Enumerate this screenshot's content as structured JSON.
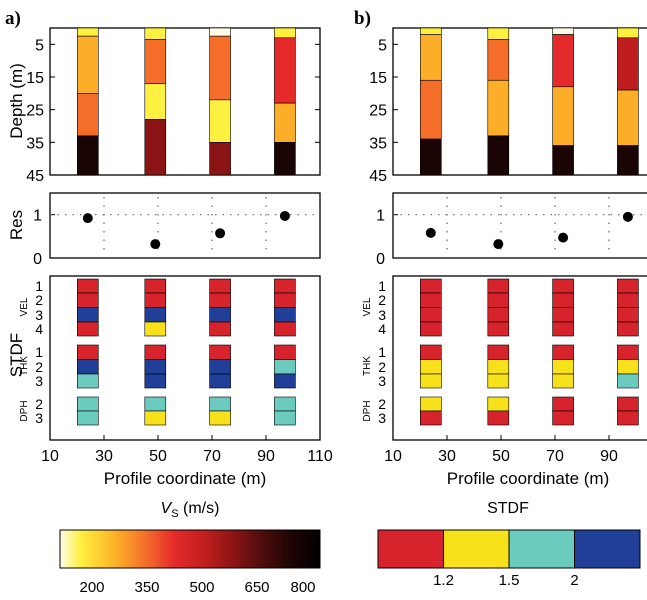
{
  "colors": {
    "vs_ramp": [
      "#fffde8",
      "#fef040",
      "#fcae28",
      "#f46e2a",
      "#e42a2a",
      "#c01e1e",
      "#8a1414",
      "#4c0c0c",
      "#1a0404",
      "#000000"
    ],
    "stdf": {
      "red": "#d7232b",
      "yellow": "#f7e11a",
      "teal": "#6ccbbf",
      "blue": "#1f3f99"
    },
    "dot": "#000000",
    "dotted_grid": "#666666"
  },
  "figure": {
    "panel_a_label": "a)",
    "panel_b_label": "b)",
    "depth_label": "Depth (m)",
    "res_label": "Res",
    "stdf_label": "STDF",
    "xlabel": "Profile coordinate (m)",
    "depth_ticks": [
      "5",
      "15",
      "25",
      "35",
      "45"
    ],
    "res_ticks": [
      "1",
      "0"
    ],
    "x_ticks": [
      "10",
      "30",
      "50",
      "70",
      "90",
      "110"
    ],
    "stdf_groups": [
      {
        "name": "VEL",
        "rows": [
          "1",
          "2",
          "3",
          "4"
        ]
      },
      {
        "name": "THK",
        "rows": [
          "1",
          "2",
          "3"
        ]
      },
      {
        "name": "DPH",
        "rows": [
          "2",
          "3"
        ]
      }
    ],
    "vs_legend": {
      "title_italic": "V",
      "title_sub": "S",
      "title_rest": " (m/s)",
      "ticks": [
        "200",
        "350",
        "500",
        "650",
        "800"
      ]
    },
    "stdf_legend": {
      "title": "STDF",
      "ticks": [
        "1.2",
        "1.5",
        "2"
      ]
    }
  },
  "chart_data": [
    {
      "type": "heatmap",
      "panel": "a)",
      "x": [
        24,
        49,
        73,
        97
      ],
      "xlim": [
        10,
        110
      ],
      "depth_ylim": [
        0,
        45
      ],
      "vs_columns": [
        {
          "x": 24,
          "layers": [
            {
              "top": 0,
              "bottom": 2.5,
              "vs": 200
            },
            {
              "top": 2.5,
              "bottom": 20,
              "vs": 330
            },
            {
              "top": 20,
              "bottom": 33,
              "vs": 420
            },
            {
              "top": 33,
              "bottom": 45,
              "vs": 800
            }
          ]
        },
        {
          "x": 49,
          "layers": [
            {
              "top": 0,
              "bottom": 3.5,
              "vs": 200
            },
            {
              "top": 3.5,
              "bottom": 17,
              "vs": 400
            },
            {
              "top": 17,
              "bottom": 28,
              "vs": 250
            },
            {
              "top": 28,
              "bottom": 45,
              "vs": 650
            }
          ]
        },
        {
          "x": 73,
          "layers": [
            {
              "top": 0,
              "bottom": 2.5,
              "vs": 180
            },
            {
              "top": 2.5,
              "bottom": 22,
              "vs": 420
            },
            {
              "top": 22,
              "bottom": 35,
              "vs": 260
            },
            {
              "top": 35,
              "bottom": 45,
              "vs": 620
            }
          ]
        },
        {
          "x": 97,
          "layers": [
            {
              "top": 0,
              "bottom": 3,
              "vs": 220
            },
            {
              "top": 3,
              "bottom": 23,
              "vs": 470
            },
            {
              "top": 23,
              "bottom": 35,
              "vs": 270
            },
            {
              "top": 35,
              "bottom": 45,
              "vs": 800
            }
          ]
        }
      ],
      "res": [
        {
          "x": 24,
          "y": 0.92
        },
        {
          "x": 49,
          "y": 0.32
        },
        {
          "x": 73,
          "y": 0.57
        },
        {
          "x": 97,
          "y": 0.97
        }
      ],
      "res_ylim": [
        0,
        1.5
      ],
      "stdf": [
        {
          "x": 24,
          "VEL": [
            "red",
            "red",
            "blue",
            "red"
          ],
          "THK": [
            "red",
            "blue",
            "teal"
          ],
          "DPH": [
            "teal",
            "teal"
          ]
        },
        {
          "x": 49,
          "VEL": [
            "red",
            "red",
            "blue",
            "yellow"
          ],
          "THK": [
            "red",
            "blue",
            "blue"
          ],
          "DPH": [
            "teal",
            "yellow"
          ]
        },
        {
          "x": 73,
          "VEL": [
            "red",
            "red",
            "blue",
            "red"
          ],
          "THK": [
            "red",
            "blue",
            "blue"
          ],
          "DPH": [
            "teal",
            "yellow"
          ]
        },
        {
          "x": 97,
          "VEL": [
            "red",
            "red",
            "blue",
            "red"
          ],
          "THK": [
            "red",
            "teal",
            "blue"
          ],
          "DPH": [
            "teal",
            "teal"
          ]
        }
      ]
    },
    {
      "type": "heatmap",
      "panel": "b)",
      "x": [
        24,
        49,
        73,
        97
      ],
      "xlim": [
        10,
        110
      ],
      "depth_ylim": [
        0,
        45
      ],
      "vs_columns": [
        {
          "x": 24,
          "layers": [
            {
              "top": 0,
              "bottom": 2,
              "vs": 190
            },
            {
              "top": 2,
              "bottom": 16,
              "vs": 330
            },
            {
              "top": 16,
              "bottom": 34,
              "vs": 410
            },
            {
              "top": 34,
              "bottom": 45,
              "vs": 800
            }
          ]
        },
        {
          "x": 49,
          "layers": [
            {
              "top": 0,
              "bottom": 3.5,
              "vs": 200
            },
            {
              "top": 3.5,
              "bottom": 16,
              "vs": 400
            },
            {
              "top": 16,
              "bottom": 33,
              "vs": 330
            },
            {
              "top": 33,
              "bottom": 45,
              "vs": 780
            }
          ]
        },
        {
          "x": 73,
          "layers": [
            {
              "top": 0,
              "bottom": 2,
              "vs": 180
            },
            {
              "top": 2,
              "bottom": 18,
              "vs": 430
            },
            {
              "top": 18,
              "bottom": 36,
              "vs": 340
            },
            {
              "top": 36,
              "bottom": 45,
              "vs": 780
            }
          ]
        },
        {
          "x": 97,
          "layers": [
            {
              "top": 0,
              "bottom": 3,
              "vs": 220
            },
            {
              "top": 3,
              "bottom": 19,
              "vs": 500
            },
            {
              "top": 19,
              "bottom": 36,
              "vs": 340
            },
            {
              "top": 36,
              "bottom": 45,
              "vs": 800
            }
          ]
        }
      ],
      "res": [
        {
          "x": 24,
          "y": 0.58
        },
        {
          "x": 49,
          "y": 0.32
        },
        {
          "x": 73,
          "y": 0.47
        },
        {
          "x": 97,
          "y": 0.95
        }
      ],
      "res_ylim": [
        0,
        1.5
      ],
      "stdf": [
        {
          "x": 24,
          "VEL": [
            "red",
            "red",
            "red",
            "red"
          ],
          "THK": [
            "red",
            "yellow",
            "yellow"
          ],
          "DPH": [
            "yellow",
            "red"
          ]
        },
        {
          "x": 49,
          "VEL": [
            "red",
            "red",
            "red",
            "red"
          ],
          "THK": [
            "red",
            "yellow",
            "yellow"
          ],
          "DPH": [
            "yellow",
            "red"
          ]
        },
        {
          "x": 73,
          "VEL": [
            "red",
            "red",
            "red",
            "red"
          ],
          "THK": [
            "red",
            "yellow",
            "yellow"
          ],
          "DPH": [
            "red",
            "red"
          ]
        },
        {
          "x": 97,
          "VEL": [
            "red",
            "red",
            "red",
            "red"
          ],
          "THK": [
            "red",
            "yellow",
            "teal"
          ],
          "DPH": [
            "red",
            "red"
          ]
        }
      ]
    }
  ]
}
